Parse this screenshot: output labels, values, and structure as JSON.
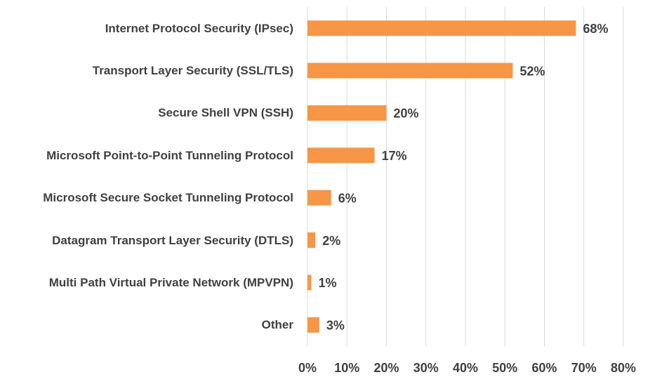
{
  "chart_data": {
    "type": "hbar",
    "categories": [
      "Internet Protocol Security (IPsec)",
      "Transport Layer Security (SSL/TLS)",
      "Secure Shell VPN (SSH)",
      "Microsoft Point-to-Point Tunneling Protocol",
      "Microsoft Secure Socket Tunneling Protocol",
      "Datagram Transport Layer Security (DTLS)",
      "Multi Path Virtual Private Network (MPVPN)",
      "Other"
    ],
    "values": [
      68,
      52,
      20,
      17,
      6,
      2,
      1,
      3
    ],
    "value_labels": [
      "68%",
      "52%",
      "20%",
      "17%",
      "6%",
      "2%",
      "1%",
      "3%"
    ],
    "color": "#f79646",
    "xlim": [
      0,
      80
    ],
    "xticks": [
      {
        "value": 0,
        "label": "0%"
      },
      {
        "value": 10,
        "label": "10%"
      },
      {
        "value": 20,
        "label": "20%"
      },
      {
        "value": 30,
        "label": "30%"
      },
      {
        "value": 40,
        "label": "40%"
      },
      {
        "value": 50,
        "label": "50%"
      },
      {
        "value": 60,
        "label": "60%"
      },
      {
        "value": 70,
        "label": "70%"
      },
      {
        "value": 80,
        "label": "80%"
      }
    ],
    "grid": true
  }
}
